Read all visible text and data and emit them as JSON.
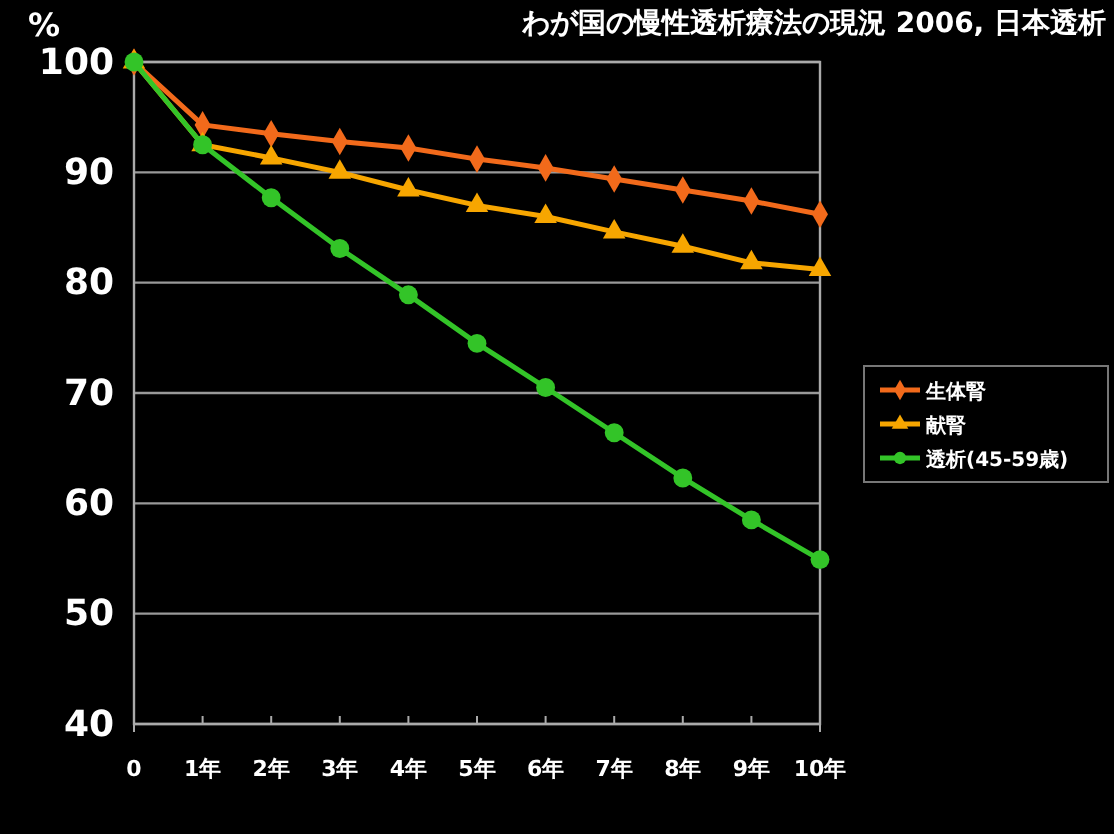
{
  "chart_data": {
    "type": "line",
    "title": "わが国の慢性透析療法の現況 2006, 日本透析",
    "ylabel": "%",
    "categories": [
      "0",
      "1年",
      "2年",
      "3年",
      "4年",
      "5年",
      "6年",
      "7年",
      "8年",
      "9年",
      "10年"
    ],
    "series": [
      {
        "name": "生体腎",
        "color": "#f26a1b",
        "marker": "diamond",
        "values": [
          100,
          94.3,
          93.5,
          92.8,
          92.2,
          91.2,
          90.4,
          89.4,
          88.4,
          87.4,
          86.2
        ]
      },
      {
        "name": "献腎",
        "color": "#f7a600",
        "marker": "triangle",
        "values": [
          100,
          92.5,
          91.3,
          90.0,
          88.4,
          87.0,
          86.0,
          84.6,
          83.3,
          81.8,
          81.2
        ]
      },
      {
        "name": "透析(45-59歳)",
        "color": "#33c428",
        "marker": "circle",
        "values": [
          100,
          92.5,
          87.7,
          83.1,
          78.9,
          74.5,
          70.5,
          66.4,
          62.3,
          58.5,
          54.9
        ]
      }
    ],
    "ylim": [
      40,
      100
    ],
    "yticks": [
      40,
      50,
      60,
      70,
      80,
      90,
      100
    ],
    "grid": "y",
    "legend": "right",
    "line_style": "solid"
  }
}
